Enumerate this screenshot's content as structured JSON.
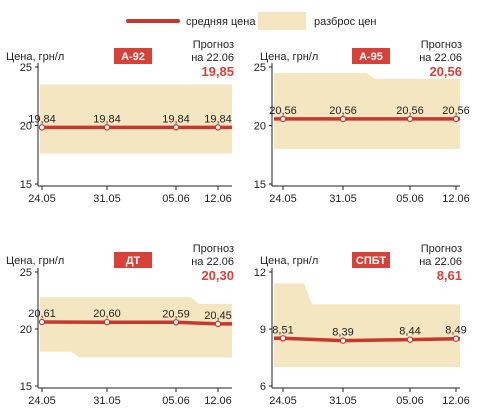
{
  "legend": {
    "avg_label": "средняя цена",
    "range_label": "разброс цен"
  },
  "colors": {
    "line": "#c8372d",
    "band": "#f3e6c0",
    "badge": "#d8403a",
    "forecast": "#d8403a",
    "text": "#231f20"
  },
  "forecast_label_1": "Прогноз",
  "forecast_label_2": "на 22.06",
  "chart_data": [
    {
      "type": "area",
      "ylabel": "Цена, грн/л",
      "badge": "А-92",
      "forecast_value": "19,85",
      "ylim": [
        15,
        25
      ],
      "yticks": [
        "15",
        "20",
        "25"
      ],
      "categories": [
        "24.05",
        "31.05",
        "05.06",
        "12.06"
      ],
      "series": [
        {
          "name": "средняя цена",
          "values": [
            19.84,
            19.84,
            19.84,
            19.84
          ]
        }
      ],
      "value_labels": [
        "19,84",
        "19,84",
        "19,84",
        "19,84"
      ],
      "range": {
        "low": [
          17.6,
          17.6,
          17.6,
          17.6
        ],
        "high": [
          23.5,
          23.5,
          23.5,
          23.5
        ]
      }
    },
    {
      "type": "area",
      "ylabel": "Цена, грн/л",
      "badge": "А-95",
      "forecast_value": "20,56",
      "ylim": [
        15,
        25
      ],
      "yticks": [
        "15",
        "20",
        "25"
      ],
      "categories": [
        "24.05",
        "31.05",
        "05.06",
        "12.06"
      ],
      "series": [
        {
          "name": "средняя цена",
          "values": [
            20.56,
            20.56,
            20.56,
            20.56
          ]
        }
      ],
      "value_labels": [
        "20,56",
        "20,56",
        "20,56",
        "20,56"
      ],
      "range": {
        "low": [
          18.0,
          18.0,
          18.0,
          18.0
        ],
        "high": [
          24.5,
          24.5,
          24.0,
          24.0
        ]
      }
    },
    {
      "type": "area",
      "ylabel": "Цена, грн/л",
      "badge": "ДТ",
      "forecast_value": "20,30",
      "ylim": [
        15,
        25
      ],
      "yticks": [
        "15",
        "20",
        "25"
      ],
      "categories": [
        "24.05",
        "31.05",
        "05.06",
        "12.06"
      ],
      "series": [
        {
          "name": "средняя цена",
          "values": [
            20.61,
            20.6,
            20.59,
            20.45
          ]
        }
      ],
      "value_labels": [
        "20,61",
        "20,60",
        "20,59",
        "20,45"
      ],
      "range": {
        "low": [
          18.0,
          17.5,
          17.5,
          17.5
        ],
        "high": [
          22.8,
          22.8,
          22.8,
          22.2
        ]
      }
    },
    {
      "type": "area",
      "ylabel": "Цена, грн/л",
      "badge": "СПБТ",
      "forecast_value": "8,61",
      "ylim": [
        6,
        12
      ],
      "yticks": [
        "6",
        "9",
        "12"
      ],
      "categories": [
        "24.05",
        "31.05",
        "05.06",
        "12.06"
      ],
      "series": [
        {
          "name": "средняя цена",
          "values": [
            8.51,
            8.39,
            8.44,
            8.49
          ]
        }
      ],
      "value_labels": [
        "8,51",
        "8,39",
        "8,44",
        "8,49"
      ],
      "range": {
        "low": [
          7.0,
          7.0,
          7.0,
          7.0
        ],
        "high": [
          11.4,
          10.3,
          10.3,
          10.3
        ]
      }
    }
  ]
}
